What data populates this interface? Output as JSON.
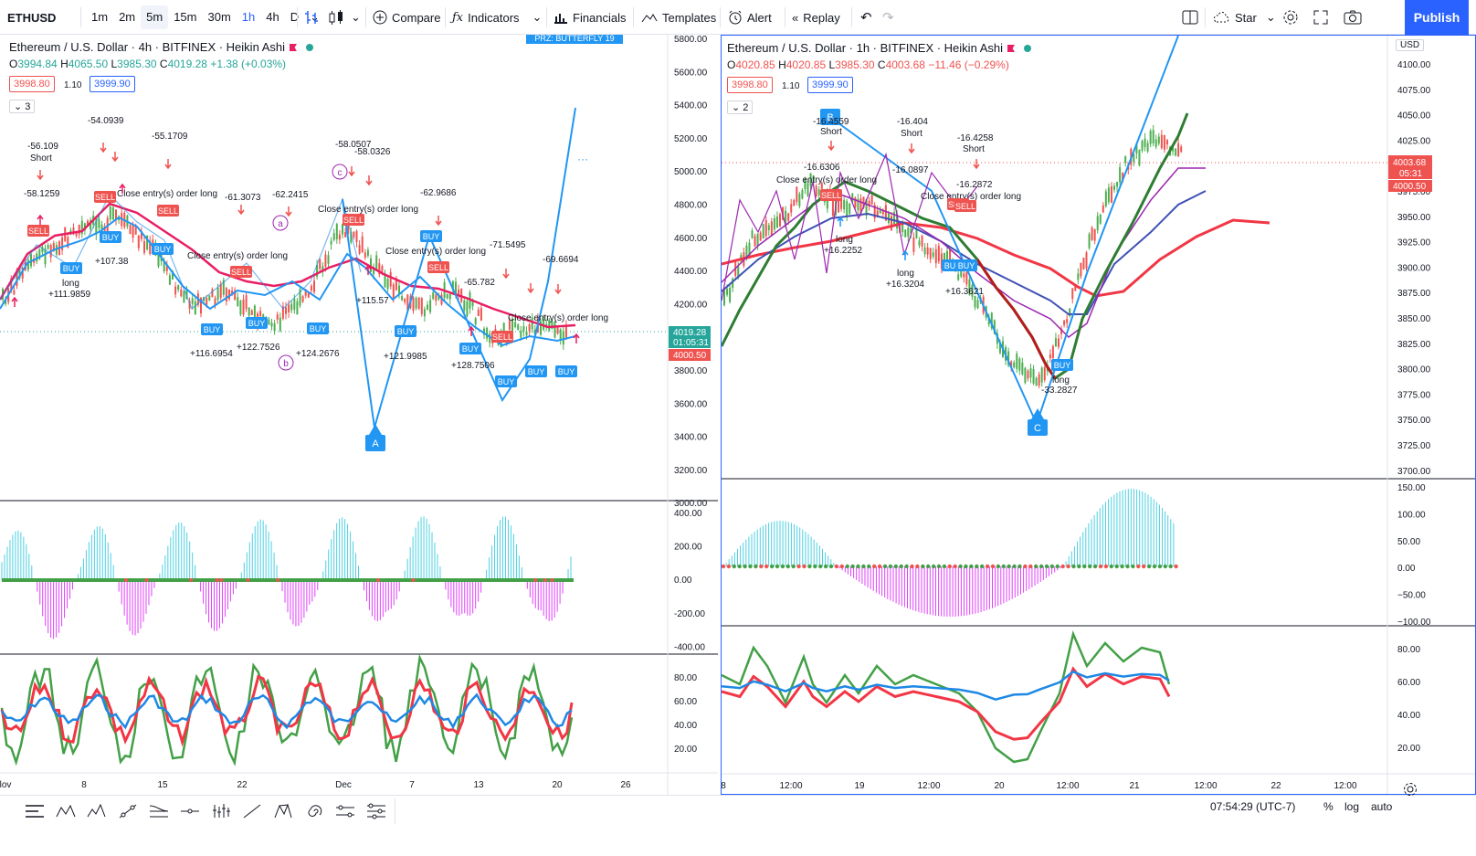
{
  "toolbar": {
    "symbol": "ETHUSD",
    "timeframes": [
      "1m",
      "2m",
      "5m",
      "15m",
      "30m",
      "1h",
      "4h",
      "D"
    ],
    "active_timeframe": "5m",
    "compare": "Compare",
    "indicators": "Indicators",
    "financials": "Financials",
    "templates": "Templates",
    "alert": "Alert",
    "replay": "Replay",
    "layout_name": "Star",
    "publish": "Publish"
  },
  "left_chart": {
    "title": "Ethereum / U.S. Dollar · 4h · BITFINEX · Heikin Ashi",
    "ohlc": {
      "o": "3994.84",
      "h": "4065.50",
      "l": "3985.30",
      "c": "4019.28",
      "chg": "+1.38 (+0.03%)"
    },
    "bid": "3998.80",
    "spread": "1.10",
    "ask": "3999.90",
    "indicator_count": "3",
    "price_axis": [
      "5800.00",
      "5600.00",
      "5400.00",
      "5200.00",
      "5000.00",
      "4800.00",
      "4600.00",
      "4400.00",
      "4200.00",
      "4000.00",
      "3800.00",
      "3600.00",
      "3400.00",
      "3200.00",
      "3000.00"
    ],
    "last_price": "4019.28",
    "last_time": "01:05:31",
    "ask_line": "4000.50",
    "osc_axis": [
      "400.00",
      "200.00",
      "0.00",
      "-200.00",
      "-400.00"
    ],
    "rsi_axis": [
      "80.00",
      "60.00",
      "40.00",
      "20.00"
    ],
    "time_axis": [
      "lov",
      "8",
      "15",
      "22",
      "Dec",
      "7",
      "13",
      "20",
      "26"
    ],
    "banner": "PRZ: BUTTERFLY 19",
    "pattern_labels": [
      "A",
      "a",
      "b",
      "c"
    ],
    "annotations": [
      {
        "text": "-54.0939"
      },
      {
        "text": "-56.109"
      },
      {
        "text": "Short"
      },
      {
        "text": "-55.1709"
      },
      {
        "text": "-58.0507"
      },
      {
        "text": "-58.0326"
      },
      {
        "text": "-62.9686"
      },
      {
        "text": "-61.3073"
      },
      {
        "text": "-62.2415"
      },
      {
        "text": "-71.5495"
      },
      {
        "text": "-69.6694"
      },
      {
        "text": "-65.782"
      },
      {
        "text": "-58.1259"
      },
      {
        "text": "long"
      },
      {
        "text": "+111.9859"
      },
      {
        "text": "+107.38"
      },
      {
        "text": "+116.6954"
      },
      {
        "text": "+122.7526"
      },
      {
        "text": "+124.2676"
      },
      {
        "text": "+121.9985"
      },
      {
        "text": "+128.7506"
      },
      {
        "text": "+115.57"
      },
      {
        "text": "Close entry(s) order long"
      },
      {
        "text": "BUY"
      },
      {
        "text": "SELL"
      }
    ]
  },
  "right_chart": {
    "title": "Ethereum / U.S. Dollar · 1h · BITFINEX · Heikin Ashi",
    "ohlc": {
      "o": "4020.85",
      "h": "4020.85",
      "l": "3985.30",
      "c": "4003.68",
      "chg": "−11.46 (−0.29%)"
    },
    "bid": "3998.80",
    "spread": "1.10",
    "ask": "3999.90",
    "indicator_count": "2",
    "currency": "USD",
    "price_axis": [
      "4100.00",
      "4075.00",
      "4050.00",
      "4025.00",
      "4000.00",
      "3975.00",
      "3950.00",
      "3925.00",
      "3900.00",
      "3875.00",
      "3850.00",
      "3825.00",
      "3800.00",
      "3775.00",
      "3750.00",
      "3725.00",
      "3700.00"
    ],
    "last_price": "4003.68",
    "last_time": "05:31",
    "ask_line": "4000.50",
    "osc_axis": [
      "150.00",
      "100.00",
      "50.00",
      "0.00",
      "−50.00",
      "−100.00"
    ],
    "rsi_axis": [
      "80.00",
      "60.00",
      "40.00",
      "20.00"
    ],
    "time_axis": [
      "8",
      "12:00",
      "19",
      "12:00",
      "20",
      "12:00",
      "21",
      "12:00",
      "22",
      "12:00"
    ],
    "pattern_labels": [
      "B",
      "C"
    ],
    "annotations": [
      {
        "text": "-16.4559"
      },
      {
        "text": "Short"
      },
      {
        "text": "-16.404"
      },
      {
        "text": "-16.4258"
      },
      {
        "text": "-16.6306"
      },
      {
        "text": "-16.0897"
      },
      {
        "text": "-16.2872"
      },
      {
        "text": "Close entry(s) order long"
      },
      {
        "text": "+16.2252"
      },
      {
        "text": "+16.3204"
      },
      {
        "text": "+16.3621"
      },
      {
        "text": "-33.2827"
      },
      {
        "text": "long"
      },
      {
        "text": "BUY"
      },
      {
        "text": "SELL"
      }
    ]
  },
  "bottom": {
    "clock": "07:54:29 (UTC-7)",
    "percent": "%",
    "log": "log",
    "auto": "auto"
  },
  "colors": {
    "accent": "#2962ff",
    "up": "#26a69a",
    "down": "#ef5350",
    "green_candle": "#4caf50",
    "red_line": "#f23645",
    "pink": "#e91e63",
    "purple": "#9c27b0",
    "blue_line": "#2196f3"
  }
}
